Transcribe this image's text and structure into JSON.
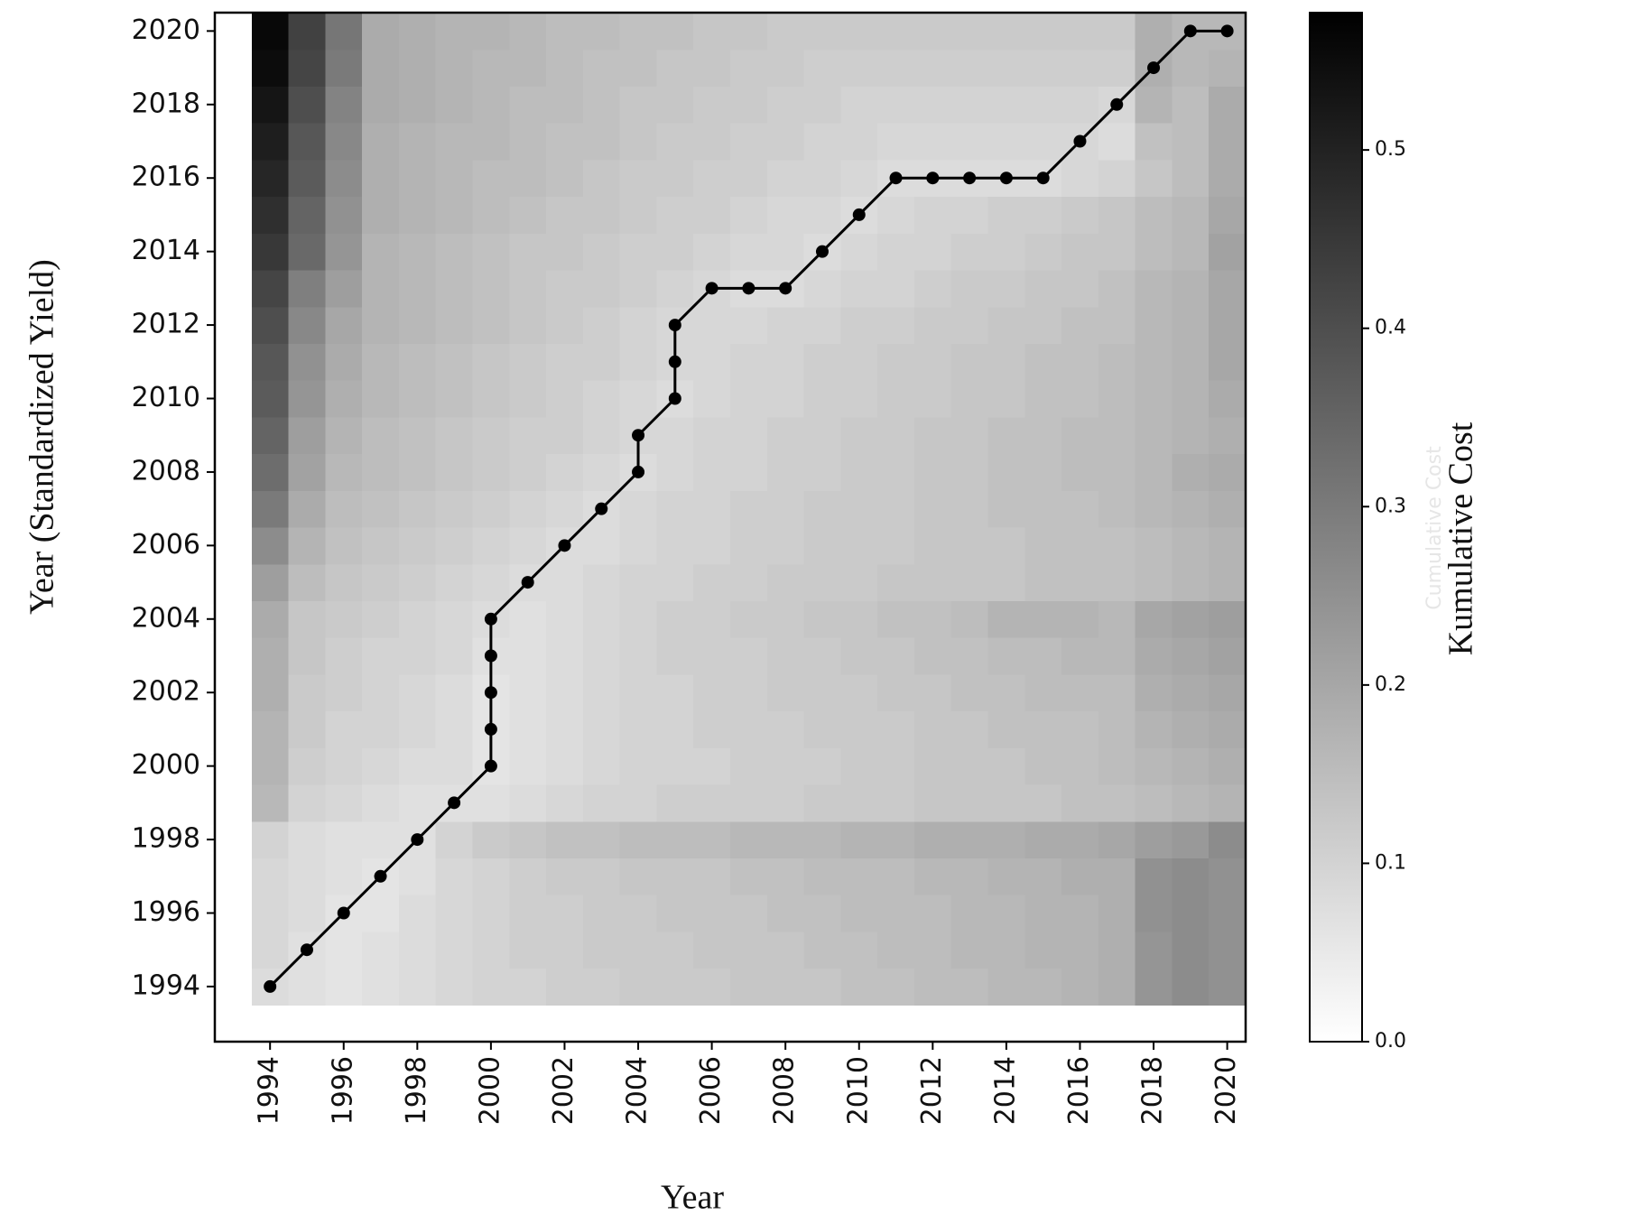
{
  "chart_data": {
    "type": "heatmap",
    "xlabel": "Year",
    "ylabel": "Year (Standardized Yield)",
    "colorbar_label": "Kumulative Cost",
    "colorbar_label_faint": "Cumulative Cost",
    "x": [
      1994,
      1995,
      1996,
      1997,
      1998,
      1999,
      2000,
      2001,
      2002,
      2003,
      2004,
      2005,
      2006,
      2007,
      2008,
      2009,
      2010,
      2011,
      2012,
      2013,
      2014,
      2015,
      2016,
      2017,
      2018,
      2019,
      2020
    ],
    "y": [
      1994,
      1995,
      1996,
      1997,
      1998,
      1999,
      2000,
      2001,
      2002,
      2003,
      2004,
      2005,
      2006,
      2007,
      2008,
      2009,
      2010,
      2011,
      2012,
      2013,
      2014,
      2015,
      2016,
      2017,
      2018,
      2019,
      2020
    ],
    "z": [
      [
        0.08,
        0.07,
        0.06,
        0.07,
        0.08,
        0.09,
        0.1,
        0.1,
        0.11,
        0.11,
        0.12,
        0.12,
        0.12,
        0.13,
        0.13,
        0.13,
        0.14,
        0.14,
        0.15,
        0.15,
        0.16,
        0.16,
        0.17,
        0.18,
        0.24,
        0.26,
        0.25
      ],
      [
        0.09,
        0.07,
        0.06,
        0.07,
        0.08,
        0.09,
        0.1,
        0.11,
        0.11,
        0.12,
        0.12,
        0.12,
        0.13,
        0.13,
        0.13,
        0.14,
        0.14,
        0.15,
        0.15,
        0.16,
        0.16,
        0.17,
        0.17,
        0.18,
        0.24,
        0.26,
        0.25
      ],
      [
        0.09,
        0.08,
        0.06,
        0.06,
        0.08,
        0.09,
        0.1,
        0.11,
        0.11,
        0.12,
        0.12,
        0.13,
        0.13,
        0.13,
        0.14,
        0.14,
        0.15,
        0.15,
        0.15,
        0.16,
        0.16,
        0.17,
        0.17,
        0.18,
        0.25,
        0.26,
        0.25
      ],
      [
        0.09,
        0.08,
        0.07,
        0.06,
        0.07,
        0.09,
        0.1,
        0.11,
        0.12,
        0.12,
        0.13,
        0.13,
        0.13,
        0.14,
        0.14,
        0.15,
        0.15,
        0.15,
        0.16,
        0.16,
        0.17,
        0.17,
        0.18,
        0.18,
        0.25,
        0.26,
        0.25
      ],
      [
        0.1,
        0.08,
        0.07,
        0.07,
        0.07,
        0.1,
        0.12,
        0.13,
        0.14,
        0.14,
        0.15,
        0.15,
        0.15,
        0.16,
        0.16,
        0.16,
        0.17,
        0.17,
        0.18,
        0.18,
        0.18,
        0.19,
        0.19,
        0.2,
        0.22,
        0.23,
        0.26
      ],
      [
        0.16,
        0.1,
        0.09,
        0.08,
        0.07,
        0.07,
        0.07,
        0.08,
        0.09,
        0.1,
        0.1,
        0.11,
        0.11,
        0.11,
        0.11,
        0.12,
        0.12,
        0.12,
        0.13,
        0.13,
        0.13,
        0.13,
        0.14,
        0.14,
        0.15,
        0.16,
        0.17
      ],
      [
        0.17,
        0.11,
        0.1,
        0.09,
        0.08,
        0.08,
        0.06,
        0.07,
        0.08,
        0.09,
        0.1,
        0.1,
        0.1,
        0.11,
        0.11,
        0.11,
        0.12,
        0.12,
        0.13,
        0.13,
        0.13,
        0.14,
        0.14,
        0.15,
        0.16,
        0.17,
        0.18
      ],
      [
        0.17,
        0.12,
        0.1,
        0.1,
        0.09,
        0.08,
        0.06,
        0.07,
        0.08,
        0.09,
        0.1,
        0.1,
        0.11,
        0.11,
        0.11,
        0.12,
        0.12,
        0.12,
        0.13,
        0.13,
        0.14,
        0.14,
        0.14,
        0.15,
        0.17,
        0.18,
        0.19
      ],
      [
        0.18,
        0.12,
        0.11,
        0.1,
        0.09,
        0.08,
        0.06,
        0.07,
        0.08,
        0.09,
        0.1,
        0.1,
        0.11,
        0.11,
        0.12,
        0.12,
        0.12,
        0.13,
        0.13,
        0.14,
        0.14,
        0.15,
        0.15,
        0.15,
        0.18,
        0.19,
        0.2
      ],
      [
        0.18,
        0.13,
        0.11,
        0.1,
        0.1,
        0.09,
        0.07,
        0.07,
        0.08,
        0.09,
        0.1,
        0.11,
        0.11,
        0.11,
        0.12,
        0.12,
        0.13,
        0.13,
        0.14,
        0.14,
        0.15,
        0.15,
        0.16,
        0.16,
        0.19,
        0.2,
        0.21
      ],
      [
        0.19,
        0.13,
        0.12,
        0.11,
        0.1,
        0.09,
        0.08,
        0.07,
        0.08,
        0.09,
        0.1,
        0.11,
        0.11,
        0.12,
        0.12,
        0.13,
        0.13,
        0.14,
        0.14,
        0.15,
        0.17,
        0.17,
        0.17,
        0.16,
        0.2,
        0.21,
        0.22
      ],
      [
        0.22,
        0.15,
        0.13,
        0.12,
        0.11,
        0.1,
        0.09,
        0.08,
        0.08,
        0.09,
        0.1,
        0.1,
        0.11,
        0.11,
        0.12,
        0.12,
        0.12,
        0.13,
        0.13,
        0.13,
        0.13,
        0.14,
        0.14,
        0.14,
        0.15,
        0.16,
        0.17
      ],
      [
        0.26,
        0.17,
        0.14,
        0.13,
        0.12,
        0.11,
        0.1,
        0.09,
        0.08,
        0.08,
        0.09,
        0.1,
        0.1,
        0.11,
        0.11,
        0.12,
        0.12,
        0.12,
        0.13,
        0.13,
        0.13,
        0.14,
        0.14,
        0.14,
        0.15,
        0.16,
        0.17
      ],
      [
        0.3,
        0.19,
        0.15,
        0.14,
        0.13,
        0.12,
        0.11,
        0.1,
        0.09,
        0.08,
        0.09,
        0.1,
        0.1,
        0.11,
        0.11,
        0.12,
        0.12,
        0.12,
        0.13,
        0.13,
        0.14,
        0.14,
        0.14,
        0.15,
        0.16,
        0.17,
        0.18
      ],
      [
        0.33,
        0.21,
        0.16,
        0.15,
        0.14,
        0.13,
        0.12,
        0.11,
        0.1,
        0.09,
        0.08,
        0.09,
        0.1,
        0.1,
        0.11,
        0.11,
        0.12,
        0.12,
        0.13,
        0.13,
        0.14,
        0.14,
        0.15,
        0.15,
        0.16,
        0.18,
        0.19
      ],
      [
        0.35,
        0.22,
        0.17,
        0.15,
        0.14,
        0.13,
        0.12,
        0.11,
        0.11,
        0.1,
        0.09,
        0.09,
        0.1,
        0.1,
        0.11,
        0.11,
        0.12,
        0.12,
        0.13,
        0.13,
        0.14,
        0.14,
        0.15,
        0.15,
        0.16,
        0.17,
        0.18
      ],
      [
        0.37,
        0.24,
        0.18,
        0.16,
        0.15,
        0.14,
        0.13,
        0.12,
        0.11,
        0.1,
        0.09,
        0.08,
        0.09,
        0.1,
        0.1,
        0.11,
        0.11,
        0.12,
        0.12,
        0.13,
        0.13,
        0.14,
        0.14,
        0.15,
        0.16,
        0.17,
        0.19
      ],
      [
        0.38,
        0.25,
        0.19,
        0.16,
        0.15,
        0.14,
        0.13,
        0.12,
        0.11,
        0.11,
        0.1,
        0.09,
        0.09,
        0.1,
        0.1,
        0.11,
        0.11,
        0.12,
        0.12,
        0.13,
        0.13,
        0.14,
        0.14,
        0.15,
        0.16,
        0.17,
        0.2
      ],
      [
        0.4,
        0.27,
        0.2,
        0.17,
        0.16,
        0.15,
        0.14,
        0.13,
        0.12,
        0.11,
        0.1,
        0.09,
        0.09,
        0.09,
        0.1,
        0.1,
        0.11,
        0.11,
        0.12,
        0.12,
        0.13,
        0.13,
        0.14,
        0.14,
        0.16,
        0.17,
        0.2
      ],
      [
        0.42,
        0.29,
        0.22,
        0.17,
        0.16,
        0.15,
        0.14,
        0.13,
        0.12,
        0.12,
        0.11,
        0.1,
        0.09,
        0.08,
        0.08,
        0.09,
        0.1,
        0.1,
        0.11,
        0.12,
        0.12,
        0.13,
        0.13,
        0.14,
        0.16,
        0.17,
        0.2
      ],
      [
        0.45,
        0.34,
        0.24,
        0.17,
        0.16,
        0.15,
        0.14,
        0.13,
        0.13,
        0.12,
        0.11,
        0.11,
        0.1,
        0.09,
        0.09,
        0.08,
        0.09,
        0.1,
        0.1,
        0.11,
        0.11,
        0.12,
        0.13,
        0.13,
        0.15,
        0.16,
        0.21
      ],
      [
        0.47,
        0.35,
        0.25,
        0.18,
        0.17,
        0.16,
        0.15,
        0.14,
        0.13,
        0.13,
        0.12,
        0.11,
        0.11,
        0.1,
        0.09,
        0.09,
        0.08,
        0.09,
        0.1,
        0.1,
        0.11,
        0.11,
        0.12,
        0.13,
        0.15,
        0.16,
        0.2
      ],
      [
        0.49,
        0.37,
        0.26,
        0.18,
        0.17,
        0.16,
        0.15,
        0.15,
        0.14,
        0.13,
        0.12,
        0.12,
        0.11,
        0.11,
        0.1,
        0.1,
        0.09,
        0.08,
        0.08,
        0.08,
        0.08,
        0.08,
        0.09,
        0.1,
        0.13,
        0.15,
        0.19
      ],
      [
        0.51,
        0.38,
        0.27,
        0.18,
        0.17,
        0.16,
        0.16,
        0.15,
        0.14,
        0.14,
        0.13,
        0.12,
        0.12,
        0.11,
        0.11,
        0.1,
        0.1,
        0.09,
        0.09,
        0.09,
        0.09,
        0.09,
        0.09,
        0.08,
        0.14,
        0.15,
        0.19
      ],
      [
        0.53,
        0.4,
        0.28,
        0.19,
        0.18,
        0.17,
        0.16,
        0.15,
        0.15,
        0.14,
        0.13,
        0.13,
        0.12,
        0.12,
        0.11,
        0.11,
        0.1,
        0.1,
        0.1,
        0.1,
        0.1,
        0.1,
        0.1,
        0.09,
        0.17,
        0.15,
        0.19
      ],
      [
        0.55,
        0.42,
        0.3,
        0.19,
        0.18,
        0.17,
        0.16,
        0.16,
        0.15,
        0.14,
        0.14,
        0.13,
        0.13,
        0.12,
        0.12,
        0.11,
        0.11,
        0.11,
        0.11,
        0.11,
        0.11,
        0.11,
        0.11,
        0.11,
        0.18,
        0.16,
        0.17
      ],
      [
        0.56,
        0.43,
        0.31,
        0.19,
        0.18,
        0.17,
        0.17,
        0.16,
        0.15,
        0.15,
        0.14,
        0.14,
        0.13,
        0.13,
        0.12,
        0.12,
        0.12,
        0.12,
        0.12,
        0.12,
        0.12,
        0.12,
        0.12,
        0.12,
        0.18,
        0.16,
        0.16
      ]
    ],
    "colormap": "gray_r",
    "xlim": [
      1992.5,
      2020.5
    ],
    "ylim": [
      1992.5,
      2020.5
    ],
    "xticks": [
      1994,
      1996,
      1998,
      2000,
      2002,
      2004,
      2006,
      2008,
      2010,
      2012,
      2014,
      2016,
      2018,
      2020
    ],
    "yticks": [
      1994,
      1996,
      1998,
      2000,
      2002,
      2004,
      2006,
      2008,
      2010,
      2012,
      2014,
      2016,
      2018,
      2020
    ],
    "clim": [
      0,
      0.577
    ],
    "cticks": [
      {
        "value": 0,
        "label": "0.0"
      },
      0.1,
      0.2,
      0.3,
      0.4,
      0.5
    ],
    "path": {
      "color": "#000000",
      "x": [
        1994,
        1995,
        1996,
        1997,
        1998,
        1999,
        2000,
        2000,
        2000,
        2000,
        2000,
        2001,
        2002,
        2003,
        2004,
        2004,
        2005,
        2005,
        2005,
        2006,
        2007,
        2008,
        2009,
        2010,
        2011,
        2012,
        2013,
        2014,
        2015,
        2016,
        2017,
        2018,
        2019,
        2020
      ],
      "y": [
        1994,
        1995,
        1996,
        1997,
        1998,
        1999,
        2000,
        2001,
        2002,
        2003,
        2004,
        2005,
        2006,
        2007,
        2008,
        2009,
        2010,
        2011,
        2012,
        2013,
        2013,
        2013,
        2014,
        2015,
        2016,
        2016,
        2016,
        2016,
        2016,
        2017,
        2018,
        2019,
        2020,
        2020
      ]
    }
  }
}
